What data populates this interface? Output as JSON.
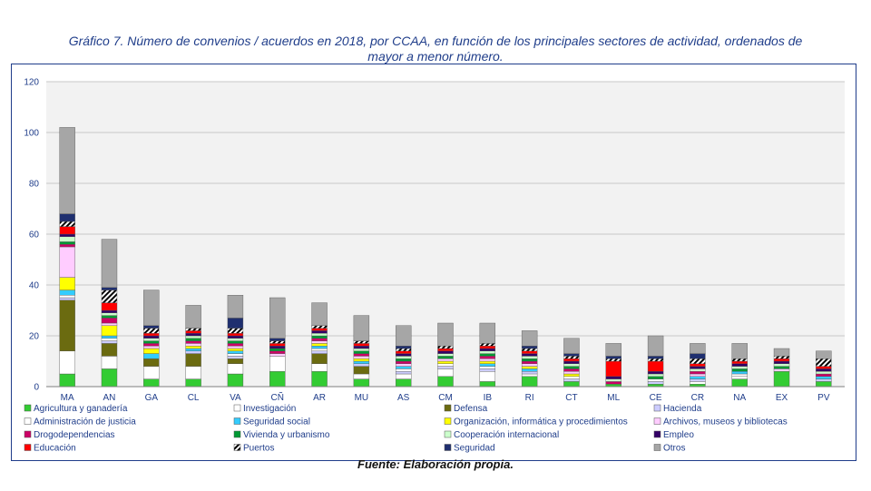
{
  "title": "Gráfico 7. Número de convenios / acuerdos en 2018, por CCAA, en función de los principales sectores de actividad, ordenados de mayor a menor número.",
  "source": "Fuente: Elaboración propia.",
  "chart_data": {
    "type": "bar",
    "stacked": true,
    "ylim": [
      0,
      120
    ],
    "yticks": [
      0,
      20,
      40,
      60,
      80,
      100,
      120
    ],
    "grid": true,
    "legend_position": "bottom",
    "categories": [
      "MA",
      "AN",
      "GA",
      "CL",
      "VA",
      "CÑ",
      "AR",
      "MU",
      "AS",
      "CM",
      "IB",
      "RI",
      "CT",
      "ML",
      "CE",
      "CR",
      "NA",
      "EX",
      "PV"
    ],
    "series": [
      {
        "name": "Agricultura y ganadería",
        "color": "#33cc33",
        "values": [
          5,
          7,
          3,
          3,
          5,
          6,
          6,
          3,
          3,
          4,
          2,
          4,
          2,
          1,
          1,
          1,
          3,
          6,
          2
        ]
      },
      {
        "name": "Investigación",
        "color": "#ffffff",
        "values": [
          9,
          5,
          5,
          5,
          4,
          6,
          3,
          2,
          2,
          3,
          4,
          1,
          0,
          0,
          0,
          1,
          1,
          0,
          0
        ]
      },
      {
        "name": "Defensa",
        "color": "#6b6b10",
        "values": [
          20,
          5,
          3,
          5,
          2,
          0,
          4,
          3,
          0,
          0,
          0,
          0,
          0,
          0,
          0,
          0,
          0,
          0,
          0
        ]
      },
      {
        "name": "Hacienda",
        "color": "#ccccff",
        "values": [
          1,
          1,
          0,
          1,
          1,
          0,
          1,
          1,
          1,
          1,
          1,
          1,
          1,
          0,
          1,
          1,
          0,
          0,
          1
        ]
      },
      {
        "name": "Administración de justicia",
        "color": "#ffffff",
        "values": [
          1,
          1,
          0,
          0,
          1,
          0,
          1,
          0,
          1,
          1,
          1,
          0,
          1,
          0,
          1,
          0,
          1,
          0,
          0
        ]
      },
      {
        "name": "Seguridad social",
        "color": "#33ccff",
        "values": [
          2,
          1,
          2,
          1,
          1,
          0,
          1,
          1,
          1,
          0,
          1,
          1,
          0,
          0,
          0,
          1,
          1,
          0,
          1
        ]
      },
      {
        "name": "Organización, informática y procedimientos",
        "color": "#ffff00",
        "values": [
          5,
          4,
          2,
          1,
          1,
          0,
          1,
          1,
          0,
          1,
          1,
          1,
          1,
          0,
          0,
          0,
          0,
          0,
          0
        ]
      },
      {
        "name": "Archivos, museos y bibliotecas",
        "color": "#ffccff",
        "values": [
          12,
          1,
          1,
          1,
          1,
          1,
          1,
          1,
          1,
          1,
          1,
          1,
          1,
          0,
          0,
          1,
          0,
          1,
          0
        ]
      },
      {
        "name": "Drogodependencias",
        "color": "#cc0066",
        "values": [
          1,
          2,
          1,
          1,
          1,
          1,
          1,
          1,
          1,
          0,
          1,
          1,
          1,
          1,
          0,
          1,
          0,
          0,
          1
        ]
      },
      {
        "name": "Vivienda y urbanismo",
        "color": "#009933",
        "values": [
          1,
          1,
          1,
          1,
          1,
          1,
          1,
          1,
          1,
          1,
          1,
          1,
          1,
          0,
          1,
          0,
          1,
          1,
          0
        ]
      },
      {
        "name": "Cooperación internacional",
        "color": "#ccffcc",
        "values": [
          2,
          1,
          1,
          1,
          1,
          0,
          1,
          1,
          1,
          1,
          1,
          1,
          1,
          1,
          1,
          1,
          1,
          1,
          1
        ]
      },
      {
        "name": "Empleo",
        "color": "#330066",
        "values": [
          1,
          1,
          1,
          1,
          1,
          1,
          1,
          1,
          1,
          1,
          1,
          1,
          1,
          1,
          1,
          1,
          1,
          1,
          1
        ]
      },
      {
        "name": "Educación",
        "color": "#ff0000",
        "values": [
          3,
          3,
          1,
          1,
          1,
          1,
          1,
          1,
          1,
          1,
          1,
          1,
          1,
          6,
          4,
          1,
          1,
          1,
          1
        ]
      },
      {
        "name": "Puertos",
        "color": "#000000",
        "pattern": "stripes",
        "values": [
          2,
          5,
          2,
          1,
          2,
          1,
          1,
          1,
          1,
          1,
          1,
          1,
          1,
          1,
          1,
          2,
          1,
          1,
          3
        ]
      },
      {
        "name": "Seguridad",
        "color": "#1f2f6f",
        "values": [
          3,
          1,
          1,
          0,
          4,
          1,
          0,
          0,
          1,
          0,
          0,
          1,
          1,
          1,
          1,
          2,
          0,
          0,
          0
        ]
      },
      {
        "name": "Otros",
        "color": "#a6a6a6",
        "values": [
          34,
          19,
          14,
          9,
          9,
          16,
          9,
          10,
          8,
          9,
          8,
          6,
          6,
          5,
          8,
          4,
          6,
          3,
          3
        ]
      }
    ]
  }
}
